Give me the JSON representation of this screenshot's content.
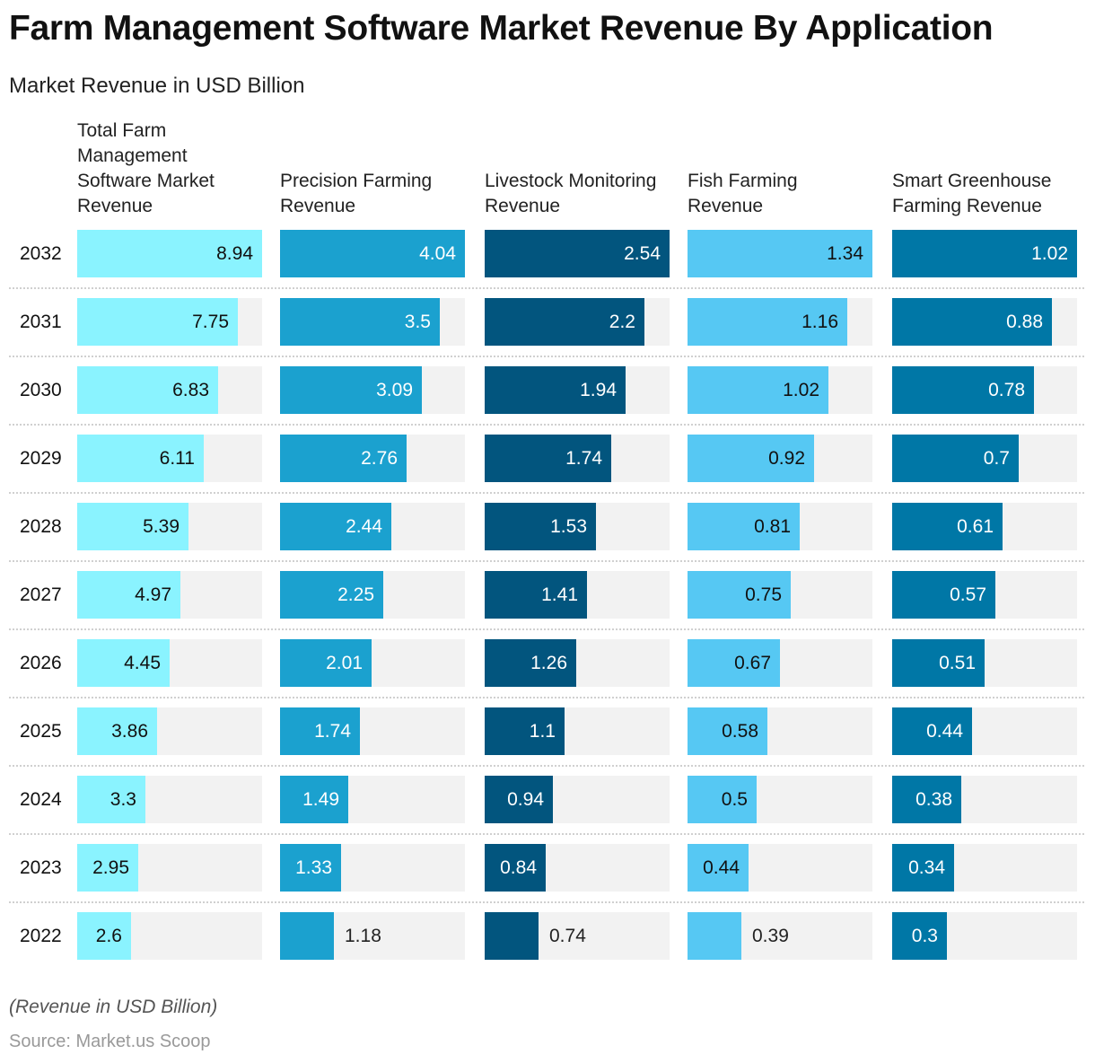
{
  "chart_data": {
    "type": "bar",
    "title": "Farm Management Software Market Revenue By Application",
    "subtitle": "Market Revenue in USD Billion",
    "categories": [
      "2032",
      "2031",
      "2030",
      "2029",
      "2028",
      "2027",
      "2026",
      "2025",
      "2024",
      "2023",
      "2022"
    ],
    "series": [
      {
        "name": "Total Farm Management Software Market Revenue",
        "color": "#8af3ff",
        "text_color": "#111111",
        "values": [
          8.94,
          7.75,
          6.83,
          6.11,
          5.39,
          4.97,
          4.45,
          3.86,
          3.3,
          2.95,
          2.6
        ]
      },
      {
        "name": "Precision Farming Revenue",
        "color": "#1ba1cf",
        "text_color": "#ffffff",
        "values": [
          4.04,
          3.5,
          3.09,
          2.76,
          2.44,
          2.25,
          2.01,
          1.74,
          1.49,
          1.33,
          1.18
        ]
      },
      {
        "name": "Livestock Monitoring Revenue",
        "color": "#02557e",
        "text_color": "#ffffff",
        "values": [
          2.54,
          2.2,
          1.94,
          1.74,
          1.53,
          1.41,
          1.26,
          1.1,
          0.94,
          0.84,
          0.74
        ]
      },
      {
        "name": "Fish Farming Revenue",
        "color": "#56c8f3",
        "text_color": "#111111",
        "values": [
          1.34,
          1.16,
          1.02,
          0.92,
          0.81,
          0.75,
          0.67,
          0.58,
          0.5,
          0.44,
          0.39
        ]
      },
      {
        "name": "Smart Greenhouse Farming Revenue",
        "color": "#0077a6",
        "text_color": "#ffffff",
        "values": [
          1.02,
          0.88,
          0.78,
          0.7,
          0.61,
          0.57,
          0.51,
          0.44,
          0.38,
          0.34,
          0.3
        ]
      }
    ],
    "note": "(Revenue in USD Billion)",
    "source": "Source: Market.us Scoop",
    "track_color": "#f2f2f2"
  }
}
